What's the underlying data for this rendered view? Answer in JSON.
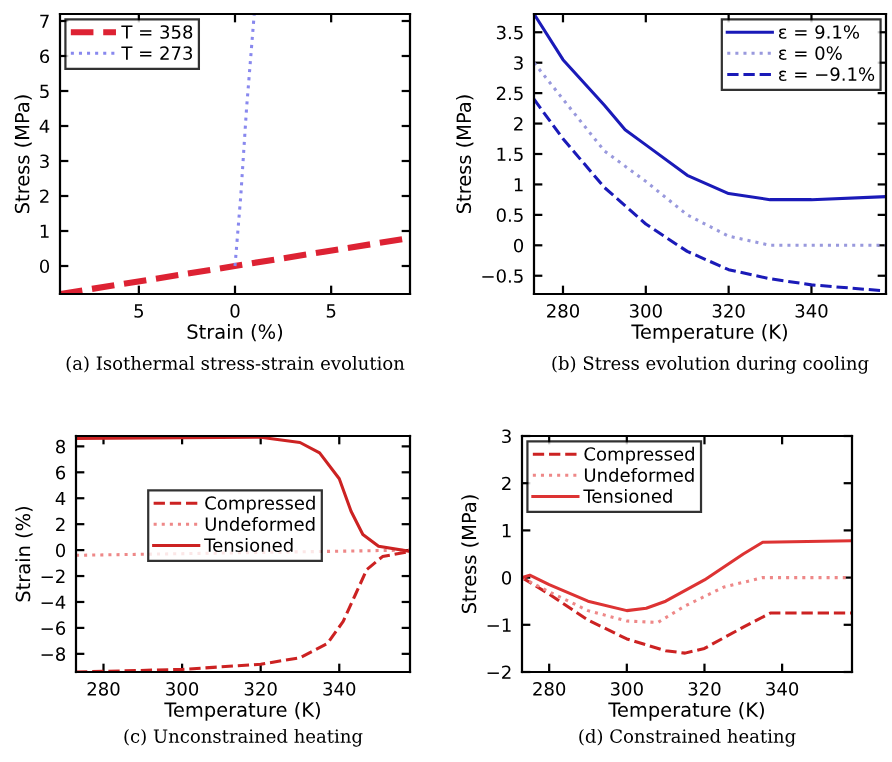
{
  "chart_data": [
    {
      "type": "line",
      "title": "(a) Isothermal stress-strain evolution",
      "xlabel": "Strain (%)",
      "ylabel": "Stress (MPa)",
      "xlim": [
        -9.1,
        9.1
      ],
      "ylim": [
        -0.8,
        7.2
      ],
      "xticks": [
        {
          "value": -5,
          "label": "5"
        },
        0,
        5
      ],
      "yticks": [
        0,
        1,
        2,
        3,
        4,
        5,
        6,
        7
      ],
      "grid": false,
      "legend": "top left",
      "series": [
        {
          "name": "T = 358",
          "color": "#dd2233",
          "line_style": "dashed",
          "x": [
            -9.1,
            9.1
          ],
          "values": [
            -0.8,
            0.8
          ]
        },
        {
          "name": "T = 273",
          "color": "#8888ee",
          "line_style": "dotted",
          "x": [
            0,
            0.3,
            0.6,
            1.0
          ],
          "values": [
            0,
            2,
            4.5,
            7.2
          ]
        }
      ]
    },
    {
      "type": "line",
      "title": "(b) Stress evolution during cooling",
      "xlabel": "Temperature (K)",
      "ylabel": "Stress (MPa)",
      "xlim": [
        273,
        358
      ],
      "ylim": [
        -0.8,
        3.8
      ],
      "xticks": [
        280,
        300,
        320,
        340
      ],
      "yticks": [
        {
          "value": -0.5,
          "label": "−0.5"
        },
        0,
        0.5,
        1,
        1.5,
        2,
        2.5,
        3,
        3.5
      ],
      "grid": false,
      "legend": "top right",
      "series": [
        {
          "name": "ε = 9.1%",
          "color": "#1a1ab8",
          "line_style": "solid",
          "x": [
            273,
            280,
            290,
            295,
            300,
            310,
            320,
            330,
            340,
            358
          ],
          "values": [
            3.8,
            3.05,
            2.3,
            1.9,
            1.65,
            1.15,
            0.85,
            0.75,
            0.75,
            0.8
          ]
        },
        {
          "name": "ε = 0%",
          "color": "#9999dd",
          "line_style": "dotted",
          "x": [
            273,
            280,
            290,
            300,
            310,
            320,
            330,
            358
          ],
          "values": [
            3.0,
            2.4,
            1.55,
            1.05,
            0.5,
            0.15,
            0.0,
            0.0
          ]
        },
        {
          "name": "ε = −9.1%",
          "color": "#1a1ab8",
          "line_style": "dashed",
          "x": [
            273,
            280,
            290,
            300,
            310,
            320,
            330,
            340,
            358
          ],
          "values": [
            2.4,
            1.75,
            0.95,
            0.35,
            -0.1,
            -0.4,
            -0.55,
            -0.65,
            -0.75
          ]
        }
      ]
    },
    {
      "type": "line",
      "title": "(c) Unconstrained heating",
      "xlabel": "Temperature (K)",
      "ylabel": "Strain (%)",
      "xlim": [
        273,
        358
      ],
      "ylim": [
        -9.4,
        8.8
      ],
      "xticks": [
        280,
        300,
        320,
        340
      ],
      "yticks": [
        {
          "value": -8,
          "label": "−8"
        },
        {
          "value": -6,
          "label": "−6"
        },
        {
          "value": -4,
          "label": "−4"
        },
        {
          "value": -2,
          "label": "−2"
        },
        0,
        2,
        4,
        6,
        8
      ],
      "grid": false,
      "legend": "left",
      "series": [
        {
          "name": "Compressed",
          "color": "#cc2222",
          "line_style": "dashed",
          "x": [
            273,
            300,
            320,
            330,
            337,
            341,
            344,
            347,
            351,
            358
          ],
          "values": [
            -9.4,
            -9.2,
            -8.8,
            -8.3,
            -7.2,
            -5.5,
            -3.5,
            -1.5,
            -0.5,
            -0.1
          ]
        },
        {
          "name": "Undeformed",
          "color": "#ee8888",
          "line_style": "dotted",
          "x": [
            273,
            358
          ],
          "values": [
            -0.4,
            0.0
          ]
        },
        {
          "name": "Tensioned",
          "color": "#cc2222",
          "line_style": "solid",
          "x": [
            273,
            320,
            330,
            335,
            340,
            343,
            346,
            350,
            358
          ],
          "values": [
            8.6,
            8.7,
            8.3,
            7.5,
            5.5,
            3.0,
            1.2,
            0.3,
            -0.1
          ]
        }
      ]
    },
    {
      "type": "line",
      "title": "(d) Constrained heating",
      "xlabel": "Temperature (K)",
      "ylabel": "Stress (MPa)",
      "xlim": [
        273,
        358
      ],
      "ylim": [
        -2,
        3
      ],
      "xticks": [
        280,
        300,
        320,
        340
      ],
      "yticks": [
        {
          "value": -2,
          "label": "−2"
        },
        {
          "value": -1,
          "label": "−1"
        },
        0,
        1,
        2,
        3
      ],
      "grid": false,
      "legend": "top left",
      "series": [
        {
          "name": "Compressed",
          "color": "#cc2222",
          "line_style": "dashed",
          "x": [
            273,
            280,
            290,
            300,
            310,
            315,
            320,
            330,
            337,
            358
          ],
          "values": [
            0,
            -0.35,
            -0.9,
            -1.3,
            -1.55,
            -1.6,
            -1.5,
            -1.05,
            -0.75,
            -0.75
          ]
        },
        {
          "name": "Undeformed",
          "color": "#ee8888",
          "line_style": "dotted",
          "x": [
            273,
            280,
            290,
            300,
            308,
            315,
            325,
            335,
            358
          ],
          "values": [
            0,
            -0.3,
            -0.7,
            -0.92,
            -0.95,
            -0.6,
            -0.2,
            0.0,
            0.0
          ]
        },
        {
          "name": "Tensioned",
          "color": "#dd3333",
          "line_style": "solid",
          "x": [
            273,
            275,
            280,
            290,
            300,
            305,
            310,
            320,
            330,
            335,
            358
          ],
          "values": [
            0.0,
            0.05,
            -0.15,
            -0.5,
            -0.7,
            -0.65,
            -0.5,
            -0.05,
            0.5,
            0.75,
            0.78
          ]
        }
      ]
    }
  ]
}
